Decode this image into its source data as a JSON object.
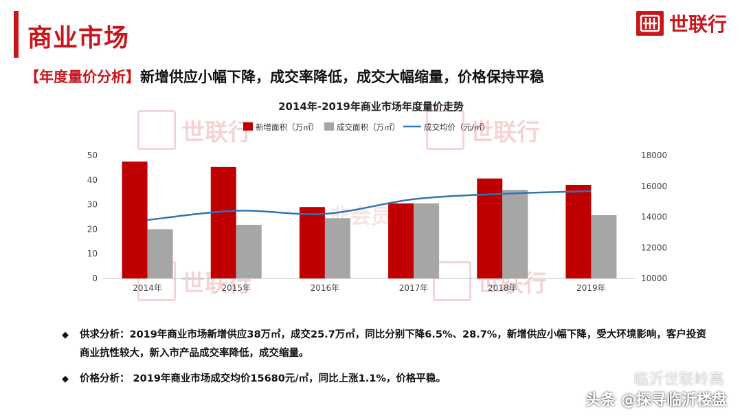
{
  "header": {
    "title": "商业市场",
    "logo_text": "世联行",
    "subtitle_tag": "【年度量价分析】",
    "subtitle_text": "新增供应小幅下降，成交率降低，成交大幅缩量，价格保持平稳"
  },
  "watermarks": {
    "brand": "世联行",
    "center": "非会员水印",
    "footer_top": "临沂世联岭高",
    "footer_bottom": "头条 @探寻临沂楼盘"
  },
  "colors": {
    "accent": "#c8161d",
    "series_new": "#c00000",
    "series_deal": "#a6a6a6",
    "series_price": "#2e75b6"
  },
  "chart_data": {
    "type": "bar",
    "title": "2014年-2019年商业市场年度量价走势",
    "categories": [
      "2014年",
      "2015年",
      "2016年",
      "2017年",
      "2018年",
      "2019年"
    ],
    "series": [
      {
        "name": "新增面积（万㎡）",
        "type": "bar",
        "axis": "left",
        "values": [
          47.5,
          45.3,
          29,
          30.5,
          40.6,
          38
        ]
      },
      {
        "name": "成交面积（万㎡）",
        "type": "bar",
        "axis": "left",
        "values": [
          20,
          21.8,
          24.5,
          30.5,
          36,
          25.7
        ]
      },
      {
        "name": "成交均价（元/㎡）",
        "type": "line",
        "axis": "right",
        "values": [
          13800,
          14400,
          14200,
          15150,
          15500,
          15680
        ]
      }
    ],
    "y_left": {
      "min": 0,
      "max": 50,
      "ticks": [
        0,
        10,
        20,
        30,
        40,
        50
      ]
    },
    "y_right": {
      "min": 10000,
      "max": 18000,
      "ticks": [
        10000,
        12000,
        14000,
        16000,
        18000
      ]
    },
    "legend_position": "top",
    "grid": false
  },
  "bullets": [
    {
      "symbol": "◆",
      "text": "供求分析：2019年商业市场新增供应38万㎡，成交25.7万㎡，同比分别下降6.5%、28.7%，新增供应小幅下降，受大环境影响，客户投资商业抗性较大，新入市产品成交率降低，成交缩量。"
    },
    {
      "symbol": "◆",
      "text": "价格分析： 2019年商业市场成交均价15680元/㎡，同比上涨1.1%，价格平稳。"
    }
  ]
}
